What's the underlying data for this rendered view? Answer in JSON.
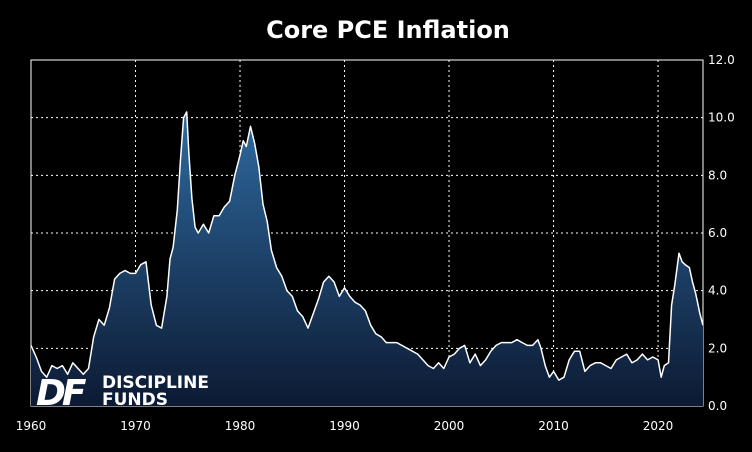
{
  "chart_data": {
    "type": "area",
    "title": "Core PCE Inflation",
    "xlabel": "",
    "ylabel": "",
    "xlim": [
      1960,
      2024.3
    ],
    "ylim": [
      0,
      12
    ],
    "x_ticks": [
      "1960",
      "1970",
      "1980",
      "1990",
      "2000",
      "2010",
      "2020"
    ],
    "y_ticks": [
      "0.0",
      "2.0",
      "4.0",
      "6.0",
      "8.0",
      "10.0",
      "12.0"
    ],
    "y_axis_side": "right",
    "grid": true,
    "legend": "none",
    "series": [
      {
        "x": [
          1960.0,
          1960.5,
          1961.0,
          1961.5,
          1962.0,
          1962.5,
          1963.0,
          1963.5,
          1964.0,
          1964.5,
          1965.0,
          1965.5,
          1966.0,
          1966.5,
          1967.0,
          1967.5,
          1968.0,
          1968.5,
          1969.0,
          1969.5,
          1970.0,
          1970.5,
          1971.0,
          1971.5,
          1972.0,
          1972.5,
          1973.0,
          1973.3,
          1973.6,
          1974.0,
          1974.3,
          1974.6,
          1974.9,
          1975.1,
          1975.4,
          1975.7,
          1976.0,
          1976.5,
          1977.0,
          1977.5,
          1978.0,
          1978.5,
          1979.0,
          1979.5,
          1980.0,
          1980.3,
          1980.6,
          1981.0,
          1981.4,
          1981.8,
          1982.2,
          1982.6,
          1983.0,
          1983.5,
          1984.0,
          1984.5,
          1985.0,
          1985.5,
          1986.0,
          1986.5,
          1987.0,
          1987.5,
          1988.0,
          1988.5,
          1989.0,
          1989.5,
          1990.0,
          1990.5,
          1991.0,
          1991.5,
          1992.0,
          1992.5,
          1993.0,
          1993.5,
          1994.0,
          1995.0,
          1996.0,
          1997.0,
          1998.0,
          1998.5,
          1999.0,
          1999.5,
          2000.0,
          2000.5,
          2001.0,
          2001.5,
          2002.0,
          2002.5,
          2003.0,
          2003.5,
          2004.0,
          2004.5,
          2005.0,
          2005.5,
          2006.0,
          2006.5,
          2007.0,
          2007.5,
          2008.0,
          2008.5,
          2008.8,
          2009.2,
          2009.6,
          2010.0,
          2010.5,
          2011.0,
          2011.5,
          2012.0,
          2012.5,
          2013.0,
          2013.5,
          2014.0,
          2014.5,
          2015.0,
          2015.5,
          2016.0,
          2016.5,
          2017.0,
          2017.5,
          2018.0,
          2018.5,
          2019.0,
          2019.5,
          2020.0,
          2020.3,
          2020.6,
          2021.0,
          2021.3,
          2021.6,
          2022.0,
          2022.3,
          2022.6,
          2023.0,
          2023.3,
          2023.6,
          2024.0,
          2024.3
        ],
        "y": [
          2.1,
          1.7,
          1.2,
          1.0,
          1.4,
          1.3,
          1.4,
          1.1,
          1.5,
          1.3,
          1.1,
          1.3,
          2.4,
          3.0,
          2.8,
          3.4,
          4.4,
          4.6,
          4.7,
          4.6,
          4.6,
          4.9,
          5.0,
          3.5,
          2.8,
          2.7,
          3.8,
          5.1,
          5.5,
          6.8,
          8.5,
          10.0,
          10.2,
          8.8,
          7.2,
          6.2,
          6.0,
          6.3,
          6.0,
          6.6,
          6.6,
          6.9,
          7.1,
          8.0,
          8.7,
          9.2,
          9.0,
          9.7,
          9.1,
          8.3,
          7.0,
          6.4,
          5.4,
          4.8,
          4.5,
          4.0,
          3.8,
          3.3,
          3.1,
          2.7,
          3.2,
          3.7,
          4.3,
          4.5,
          4.3,
          3.8,
          4.1,
          3.8,
          3.6,
          3.5,
          3.3,
          2.8,
          2.5,
          2.4,
          2.2,
          2.2,
          2.0,
          1.8,
          1.4,
          1.3,
          1.5,
          1.3,
          1.7,
          1.8,
          2.0,
          2.1,
          1.5,
          1.8,
          1.4,
          1.6,
          1.9,
          2.1,
          2.2,
          2.2,
          2.2,
          2.3,
          2.2,
          2.1,
          2.1,
          2.3,
          2.0,
          1.4,
          1.0,
          1.2,
          0.9,
          1.0,
          1.6,
          1.9,
          1.9,
          1.2,
          1.4,
          1.5,
          1.5,
          1.4,
          1.3,
          1.6,
          1.7,
          1.8,
          1.5,
          1.6,
          1.8,
          1.6,
          1.7,
          1.6,
          1.0,
          1.4,
          1.5,
          3.5,
          4.2,
          5.3,
          5.0,
          4.9,
          4.8,
          4.3,
          3.9,
          3.2,
          2.8
        ],
        "fill_top": "#2f6aa0",
        "fill_bottom": "#0c1a33",
        "line_color": "#ffffff"
      }
    ]
  },
  "logo": {
    "mark": "DF",
    "line1": "DISCIPLINE",
    "line2": "FUNDS"
  }
}
